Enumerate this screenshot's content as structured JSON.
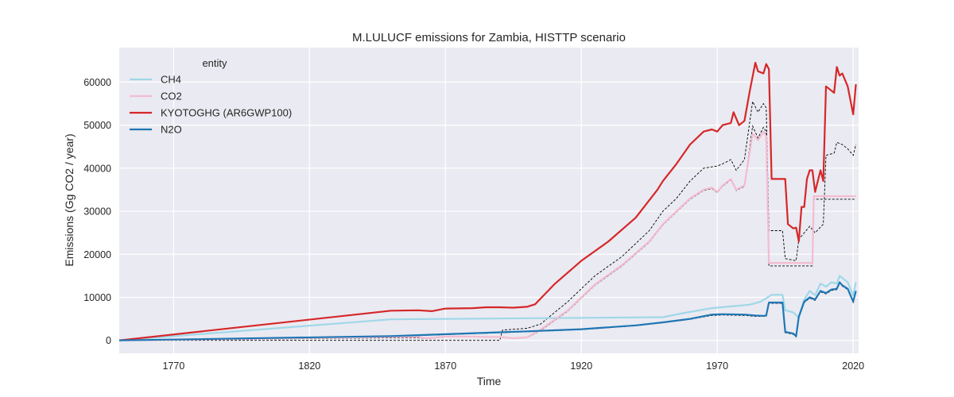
{
  "chart_data": {
    "type": "line",
    "title": "M.LULUCF emissions for Zambia, HISTTP scenario",
    "xlabel": "Time",
    "ylabel": "Emissions (Gg CO2 / year)",
    "xlim": [
      1750,
      2022
    ],
    "ylim": [
      -3000,
      68000
    ],
    "xticks": [
      1770,
      1820,
      1870,
      1920,
      1970,
      2020
    ],
    "yticks": [
      0,
      10000,
      20000,
      30000,
      40000,
      50000,
      60000
    ],
    "grid": true,
    "legend": {
      "title": "entity",
      "position": "top-left"
    },
    "colors": {
      "background": "#eaeaf2",
      "grid": "#ffffff",
      "CH4": "#9fd8e8",
      "CO2": "#f4bcd0",
      "KYOTOGHG (AR6GWP100)": "#d62728",
      "N2O": "#1f77b4",
      "reference": "#000000"
    },
    "series": [
      {
        "name": "CH4",
        "points": [
          [
            1750,
            0
          ],
          [
            1850,
            4900
          ],
          [
            1950,
            5400
          ],
          [
            1958,
            6400
          ],
          [
            1968,
            7500
          ],
          [
            1975,
            7900
          ],
          [
            1982,
            8300
          ],
          [
            1986,
            9000
          ],
          [
            1990,
            10600
          ],
          [
            1994,
            10600
          ],
          [
            1995,
            7000
          ],
          [
            1998,
            6500
          ],
          [
            2000,
            5300
          ],
          [
            2002,
            9500
          ],
          [
            2004,
            11500
          ],
          [
            2006,
            10500
          ],
          [
            2008,
            13200
          ],
          [
            2010,
            12500
          ],
          [
            2012,
            13500
          ],
          [
            2014,
            13200
          ],
          [
            2015,
            15000
          ],
          [
            2016,
            14500
          ],
          [
            2018,
            13500
          ],
          [
            2020,
            10500
          ],
          [
            2021,
            13500
          ]
        ]
      },
      {
        "name": "CO2",
        "points": [
          [
            1750,
            0
          ],
          [
            1850,
            800
          ],
          [
            1860,
            800
          ],
          [
            1863,
            500
          ],
          [
            1870,
            900
          ],
          [
            1880,
            900
          ],
          [
            1885,
            800
          ],
          [
            1890,
            800
          ],
          [
            1895,
            500
          ],
          [
            1900,
            700
          ],
          [
            1905,
            2500
          ],
          [
            1915,
            7000
          ],
          [
            1925,
            13000
          ],
          [
            1935,
            17500
          ],
          [
            1945,
            23000
          ],
          [
            1950,
            27000
          ],
          [
            1955,
            30000
          ],
          [
            1960,
            33000
          ],
          [
            1965,
            35000
          ],
          [
            1968,
            35500
          ],
          [
            1970,
            34500
          ],
          [
            1972,
            36000
          ],
          [
            1975,
            37500
          ],
          [
            1977,
            35000
          ],
          [
            1980,
            36000
          ],
          [
            1983,
            48000
          ],
          [
            1985,
            46500
          ],
          [
            1987,
            48500
          ],
          [
            1988,
            47500
          ],
          [
            1989,
            18000
          ],
          [
            1995,
            18000
          ],
          [
            2000,
            18000
          ],
          [
            2004,
            18000
          ],
          [
            2005,
            17800
          ],
          [
            2005.5,
            33500
          ],
          [
            2021,
            33500
          ]
        ]
      },
      {
        "name": "KYOTOGHG (AR6GWP100)",
        "points": [
          [
            1750,
            0
          ],
          [
            1850,
            6900
          ],
          [
            1860,
            7000
          ],
          [
            1865,
            6800
          ],
          [
            1870,
            7400
          ],
          [
            1880,
            7500
          ],
          [
            1885,
            7700
          ],
          [
            1890,
            7700
          ],
          [
            1895,
            7600
          ],
          [
            1900,
            7800
          ],
          [
            1903,
            8400
          ],
          [
            1910,
            13000
          ],
          [
            1920,
            18500
          ],
          [
            1930,
            23000
          ],
          [
            1940,
            28500
          ],
          [
            1948,
            35000
          ],
          [
            1950,
            37000
          ],
          [
            1955,
            41000
          ],
          [
            1960,
            45500
          ],
          [
            1965,
            48500
          ],
          [
            1968,
            49000
          ],
          [
            1970,
            48500
          ],
          [
            1972,
            50000
          ],
          [
            1975,
            50500
          ],
          [
            1976,
            53000
          ],
          [
            1978,
            50000
          ],
          [
            1980,
            51000
          ],
          [
            1982,
            58000
          ],
          [
            1984,
            64500
          ],
          [
            1985,
            62500
          ],
          [
            1987,
            62000
          ],
          [
            1988,
            64200
          ],
          [
            1989,
            63000
          ],
          [
            1990,
            37500
          ],
          [
            1995,
            37500
          ],
          [
            1996,
            27000
          ],
          [
            1998,
            26000
          ],
          [
            1999,
            26200
          ],
          [
            2000,
            23000
          ],
          [
            2001,
            31000
          ],
          [
            2002,
            31000
          ],
          [
            2003,
            37500
          ],
          [
            2004,
            39500
          ],
          [
            2005,
            39500
          ],
          [
            2006,
            34500
          ],
          [
            2008,
            39500
          ],
          [
            2009,
            37000
          ],
          [
            2010,
            59000
          ],
          [
            2012,
            58000
          ],
          [
            2013,
            57500
          ],
          [
            2014,
            63500
          ],
          [
            2015,
            61500
          ],
          [
            2016,
            62000
          ],
          [
            2018,
            59000
          ],
          [
            2020,
            52500
          ],
          [
            2021,
            59500
          ]
        ]
      },
      {
        "name": "N2O",
        "points": [
          [
            1750,
            0
          ],
          [
            1850,
            1000
          ],
          [
            1900,
            2100
          ],
          [
            1920,
            2600
          ],
          [
            1940,
            3500
          ],
          [
            1950,
            4200
          ],
          [
            1960,
            5000
          ],
          [
            1968,
            6000
          ],
          [
            1972,
            6100
          ],
          [
            1980,
            6000
          ],
          [
            1984,
            5800
          ],
          [
            1987,
            5700
          ],
          [
            1988,
            5800
          ],
          [
            1989,
            8800
          ],
          [
            1994,
            8800
          ],
          [
            1995,
            2000
          ],
          [
            1998,
            1600
          ],
          [
            1999,
            1000
          ],
          [
            2000,
            5500
          ],
          [
            2002,
            9000
          ],
          [
            2004,
            10000
          ],
          [
            2006,
            9500
          ],
          [
            2008,
            11500
          ],
          [
            2010,
            11000
          ],
          [
            2012,
            11800
          ],
          [
            2014,
            12000
          ],
          [
            2015,
            13500
          ],
          [
            2016,
            12800
          ],
          [
            2018,
            12000
          ],
          [
            2020,
            9000
          ],
          [
            2021,
            11500
          ]
        ]
      }
    ],
    "reference_lines": [
      {
        "points": [
          [
            1750,
            0
          ],
          [
            1890,
            0
          ],
          [
            1891,
            2400
          ],
          [
            1900,
            2800
          ],
          [
            1905,
            3800
          ],
          [
            1915,
            9000
          ],
          [
            1925,
            15000
          ],
          [
            1935,
            19500
          ],
          [
            1945,
            25500
          ],
          [
            1950,
            30000
          ],
          [
            1955,
            33000
          ],
          [
            1960,
            37000
          ],
          [
            1965,
            40000
          ],
          [
            1970,
            40500
          ],
          [
            1972,
            41000
          ],
          [
            1975,
            42000
          ],
          [
            1977,
            39500
          ],
          [
            1980,
            42000
          ],
          [
            1983,
            55500
          ],
          [
            1985,
            53000
          ],
          [
            1987,
            55000
          ],
          [
            1988,
            54000
          ],
          [
            1989,
            25500
          ],
          [
            1994,
            25500
          ],
          [
            1995,
            19000
          ],
          [
            1999,
            18500
          ],
          [
            2000,
            23500
          ],
          [
            2004,
            26500
          ],
          [
            2006,
            25000
          ],
          [
            2009,
            27000
          ],
          [
            2010,
            43000
          ],
          [
            2013,
            43500
          ],
          [
            2014,
            46000
          ],
          [
            2016,
            45500
          ],
          [
            2018,
            44500
          ],
          [
            2020,
            43000
          ],
          [
            2021,
            45500
          ]
        ]
      },
      {
        "points": [
          [
            1750,
            0
          ],
          [
            1850,
            600
          ],
          [
            1860,
            600
          ],
          [
            1863,
            400
          ],
          [
            1870,
            800
          ],
          [
            1880,
            800
          ],
          [
            1890,
            800
          ],
          [
            1895,
            500
          ],
          [
            1900,
            600
          ],
          [
            1905,
            2300
          ],
          [
            1915,
            6800
          ],
          [
            1925,
            12800
          ],
          [
            1935,
            17300
          ],
          [
            1945,
            22800
          ],
          [
            1950,
            26800
          ],
          [
            1955,
            29800
          ],
          [
            1960,
            32800
          ],
          [
            1965,
            34800
          ],
          [
            1968,
            35300
          ],
          [
            1970,
            34300
          ],
          [
            1972,
            35800
          ],
          [
            1975,
            37300
          ],
          [
            1977,
            34800
          ],
          [
            1980,
            35800
          ],
          [
            1983,
            49800
          ],
          [
            1985,
            47000
          ],
          [
            1987,
            49500
          ],
          [
            1988,
            48500
          ],
          [
            1989,
            17300
          ],
          [
            1995,
            17300
          ],
          [
            2000,
            17300
          ],
          [
            2005,
            17300
          ],
          [
            2005.5,
            32800
          ],
          [
            2021,
            32800
          ]
        ]
      },
      {
        "points": [
          [
            1750,
            0
          ],
          [
            1850,
            900
          ],
          [
            1900,
            2000
          ],
          [
            1920,
            2500
          ],
          [
            1940,
            3400
          ],
          [
            1950,
            4100
          ],
          [
            1960,
            4900
          ],
          [
            1968,
            5800
          ],
          [
            1972,
            5900
          ],
          [
            1980,
            5800
          ],
          [
            1984,
            5600
          ],
          [
            1988,
            5600
          ],
          [
            1989,
            8600
          ],
          [
            1994,
            8600
          ],
          [
            1995,
            1800
          ],
          [
            1998,
            1400
          ],
          [
            1999,
            800
          ],
          [
            2000,
            5300
          ],
          [
            2002,
            8800
          ],
          [
            2004,
            9800
          ],
          [
            2006,
            9300
          ],
          [
            2008,
            11300
          ],
          [
            2010,
            10800
          ],
          [
            2012,
            11600
          ],
          [
            2014,
            11800
          ],
          [
            2015,
            13300
          ],
          [
            2016,
            12600
          ],
          [
            2018,
            11800
          ],
          [
            2020,
            8800
          ],
          [
            2021,
            11300
          ]
        ]
      }
    ]
  }
}
